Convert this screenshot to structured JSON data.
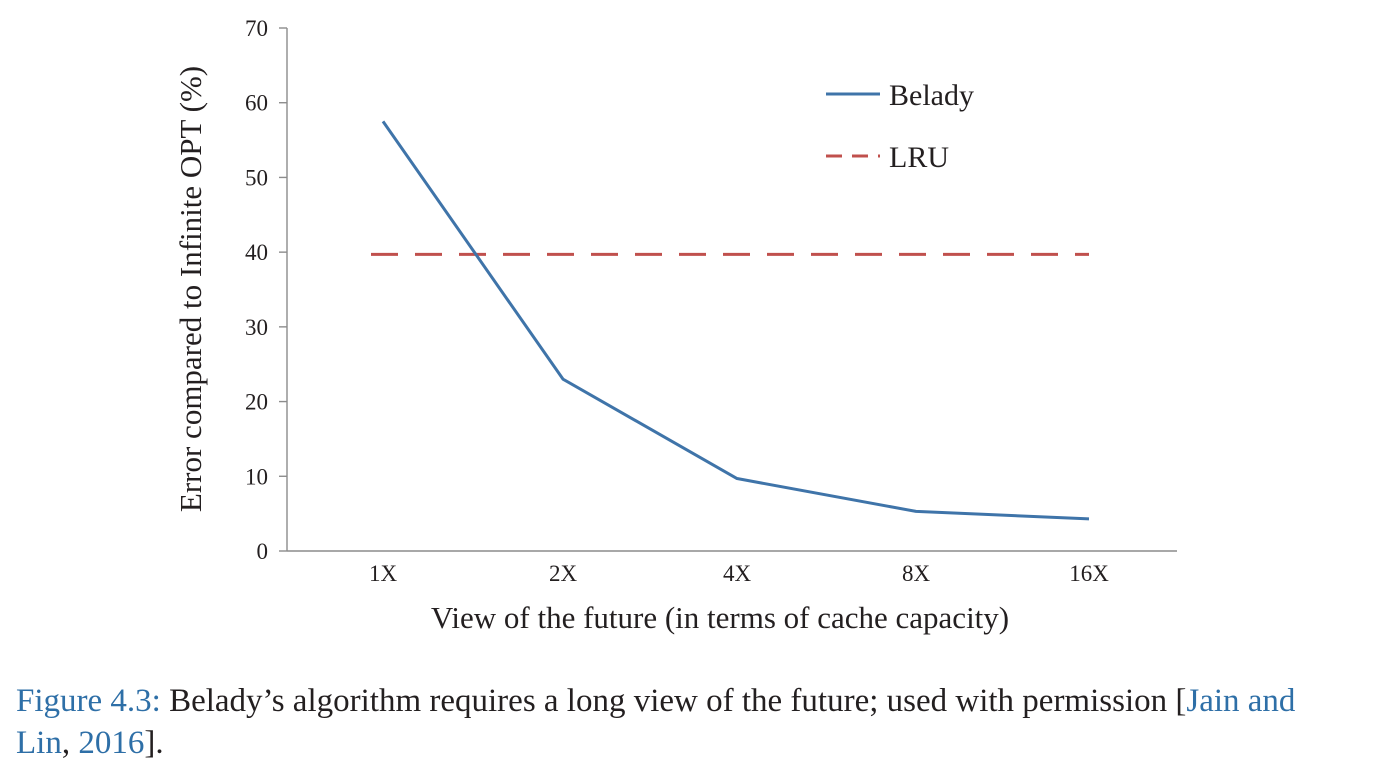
{
  "chart_data": {
    "type": "line",
    "categories": [
      "1X",
      "2X",
      "4X",
      "8X",
      "16X"
    ],
    "series": [
      {
        "name": "Belady",
        "values": [
          57.5,
          23,
          9.7,
          5.3,
          4.3
        ],
        "color": "#3f74a9",
        "style": "solid"
      },
      {
        "name": "LRU",
        "values": [
          39.7,
          39.7,
          39.7,
          39.7,
          39.7
        ],
        "color": "#c0504d",
        "style": "dashed"
      }
    ],
    "xlabel": "View of the future (in terms of cache capacity)",
    "ylabel": "Error compared to Infinite OPT  (%)",
    "ylim": [
      0,
      70
    ],
    "yticks": [
      0,
      10,
      20,
      30,
      40,
      50,
      60,
      70
    ],
    "grid": false,
    "legend": "top-right"
  },
  "caption": {
    "label": "Figure 4.3:",
    "text": " Belady’s algorithm requires a long view of the future; used with permission [",
    "citation": "Jain and Lin, 2016",
    "citation_first": "Jain and",
    "citation_second": "Lin",
    "citation_sep": ", ",
    "citation_year": "2016",
    "close": "]."
  }
}
